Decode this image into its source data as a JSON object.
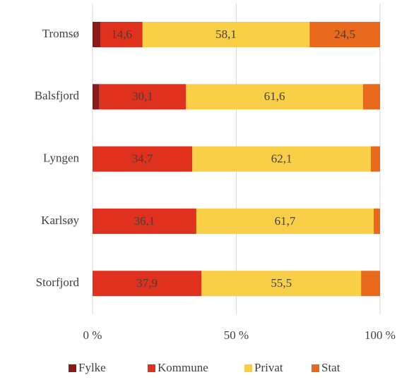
{
  "chart_data": {
    "type": "stacked_bar_horizontal",
    "categories": [
      "Tromsø",
      "Balsfjord",
      "Lyngen",
      "Karlsøy",
      "Storfjord"
    ],
    "series": [
      {
        "name": "Fylke",
        "color": "#8b1a1a",
        "values": [
          2.8,
          2.4,
          0,
          0,
          0
        ],
        "value_labels": [
          null,
          null,
          null,
          null,
          null
        ]
      },
      {
        "name": "Kommune",
        "color": "#e0301e",
        "values": [
          14.6,
          30.1,
          34.7,
          36.1,
          37.9
        ],
        "value_labels": [
          "14,6",
          "30,1",
          "34,7",
          "36,1",
          "37,9"
        ]
      },
      {
        "name": "Privat",
        "color": "#f9cf48",
        "values": [
          58.1,
          61.6,
          62.1,
          61.7,
          55.5
        ],
        "value_labels": [
          "58,1",
          "61,6",
          "62,1",
          "61,7",
          "55,5"
        ]
      },
      {
        "name": "Stat",
        "color": "#e8691c",
        "values": [
          24.5,
          5.9,
          3.2,
          2.2,
          6.6
        ],
        "value_labels": [
          "24,5",
          null,
          null,
          null,
          null
        ]
      }
    ],
    "xlim": [
      0,
      100
    ],
    "xticks": [
      {
        "value": 0,
        "label": "0 %"
      },
      {
        "value": 50,
        "label": "50 %"
      },
      {
        "value": 100,
        "label": "100 %"
      }
    ],
    "grid": true,
    "legend": "bottom"
  }
}
